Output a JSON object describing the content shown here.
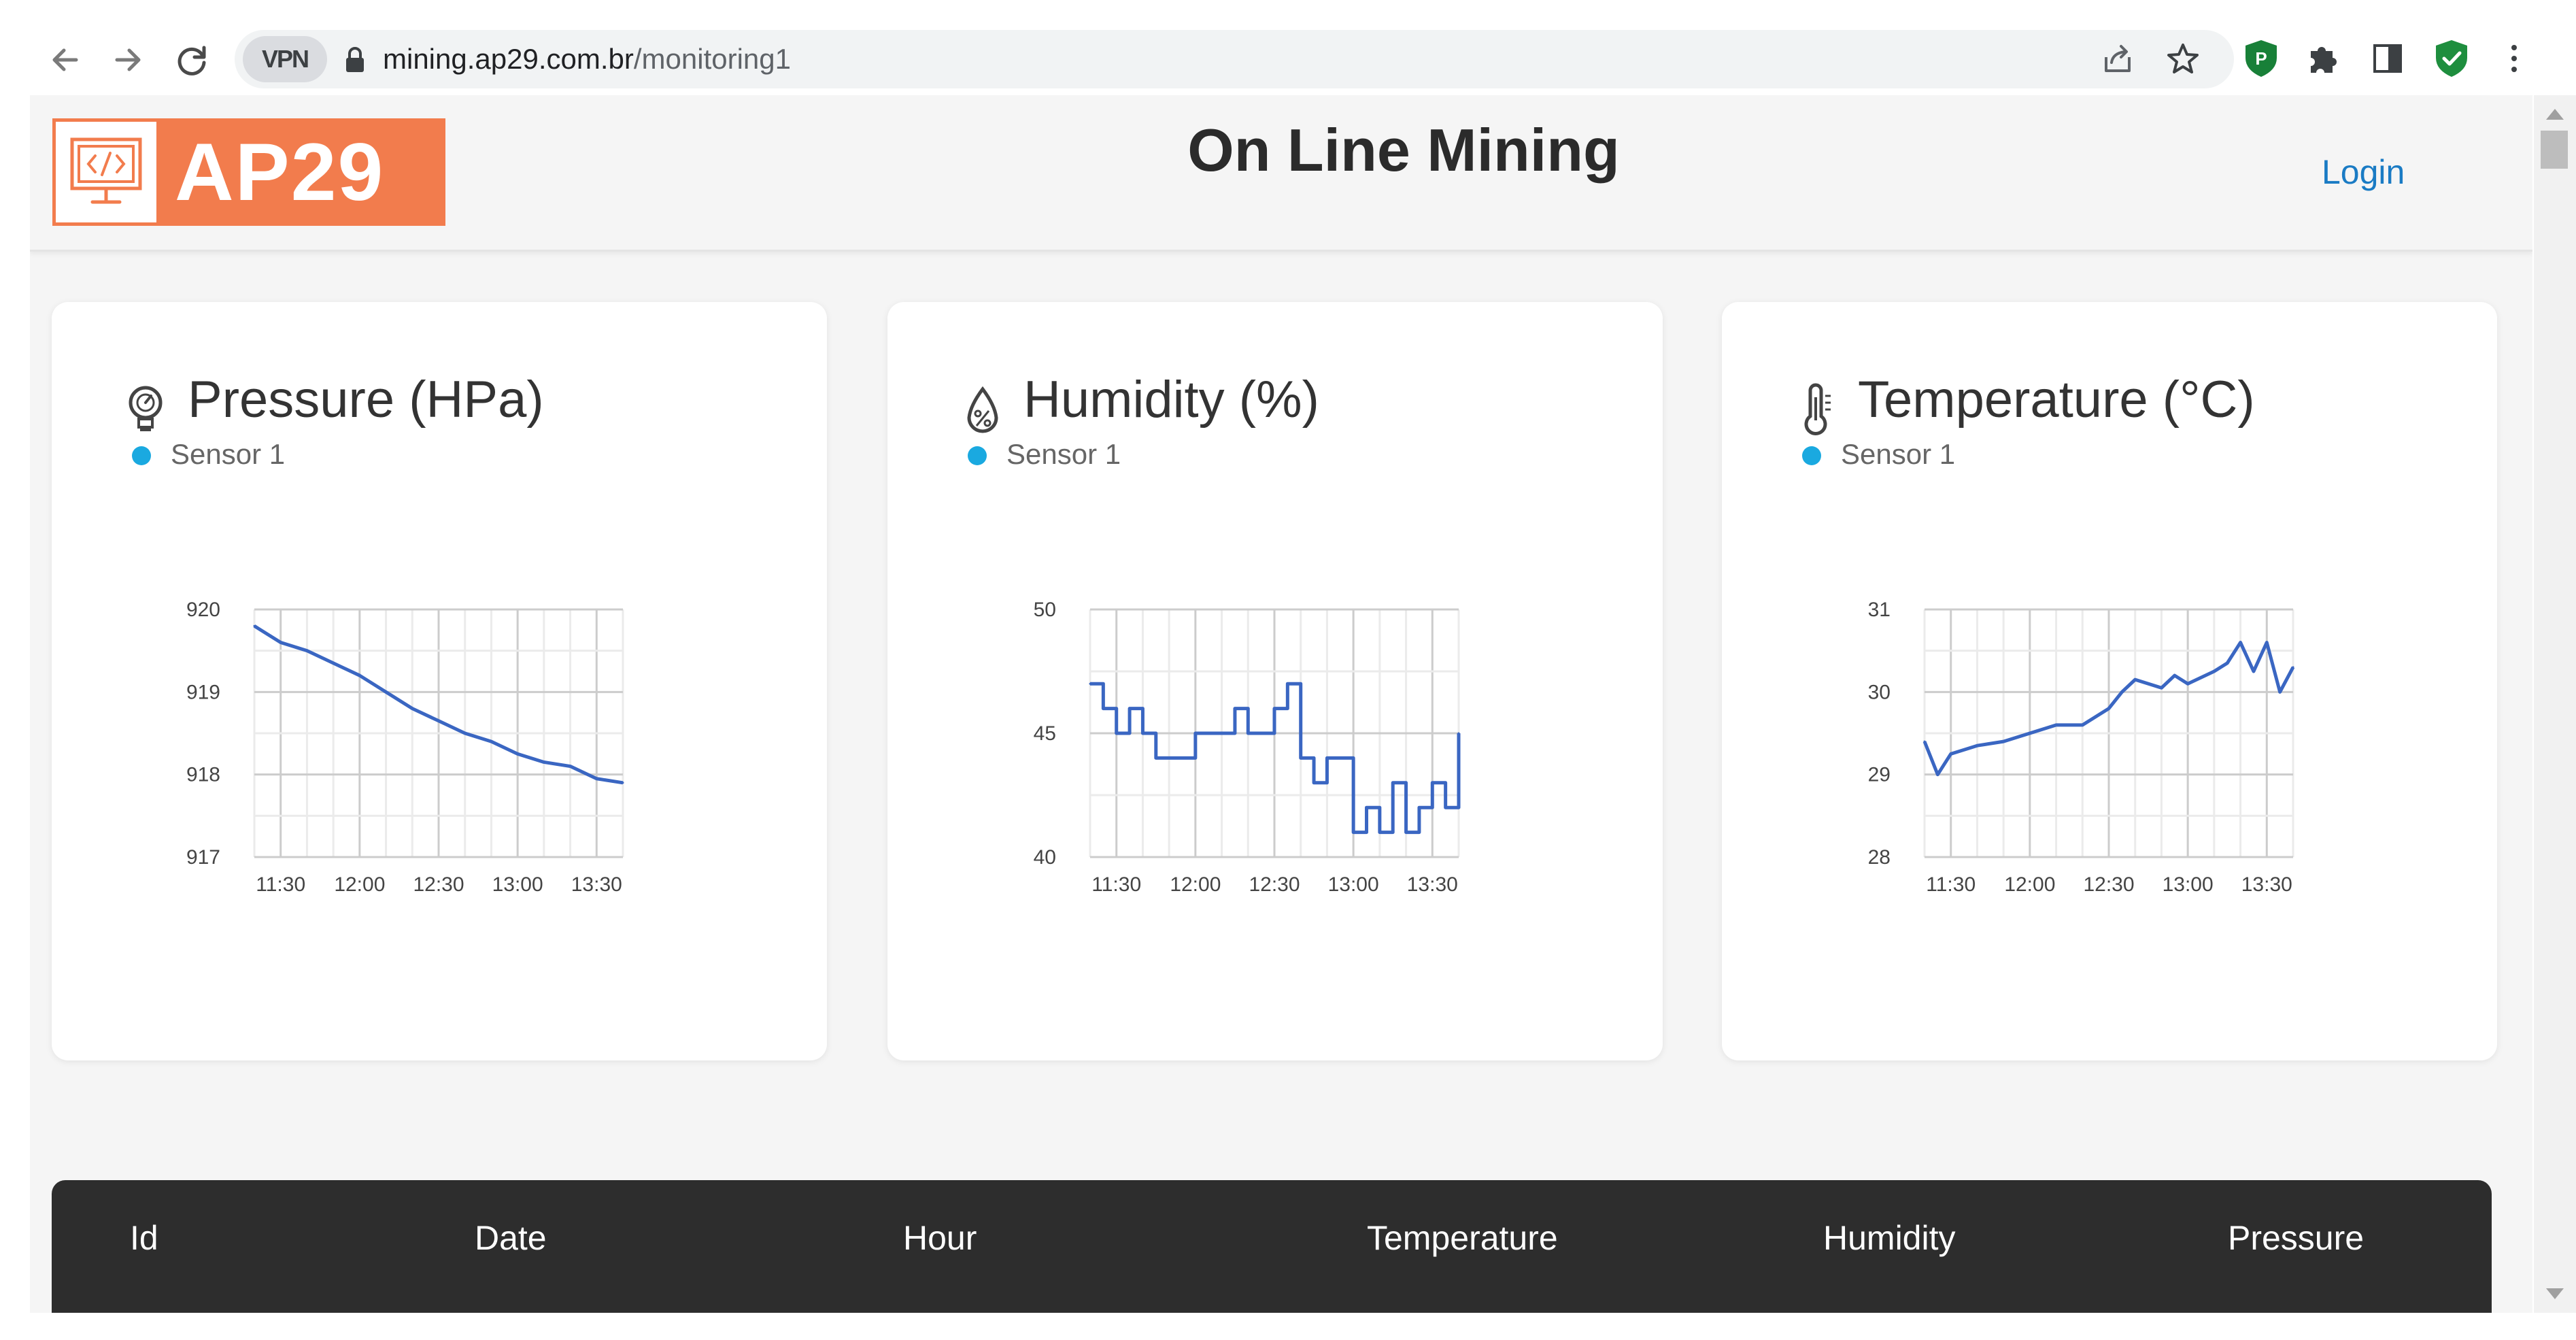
{
  "browser": {
    "vpn_label": "VPN",
    "url_domain": "mining.ap29.com.br",
    "url_path": "/monitoring1",
    "icons": [
      "back-icon",
      "forward-icon",
      "reload-icon",
      "lock-icon",
      "share-icon",
      "star-icon",
      "extension-p-icon",
      "puzzle-icon",
      "sidepanel-icon",
      "shield-check-icon",
      "more-vert-icon"
    ]
  },
  "header": {
    "logo_text": "AP29",
    "title": "On Line Mining",
    "login": "Login",
    "brand_color": "#f27c4d"
  },
  "cards": [
    {
      "title": "Pressure (HPa)",
      "icon": "pressure-gauge-icon",
      "legend": "Sensor 1"
    },
    {
      "title": "Humidity (%)",
      "icon": "humidity-drop-icon",
      "legend": "Sensor 1"
    },
    {
      "title": "Temperature (°C)",
      "icon": "thermometer-icon",
      "legend": "Sensor 1"
    }
  ],
  "chart_data": [
    {
      "type": "line",
      "title": "Pressure (HPa)",
      "series": [
        {
          "name": "Sensor 1",
          "color": "#3a66c2",
          "x": [
            "11:20",
            "11:30",
            "11:40",
            "11:50",
            "12:00",
            "12:10",
            "12:20",
            "12:30",
            "12:40",
            "12:50",
            "13:00",
            "13:10",
            "13:20",
            "13:30",
            "13:40"
          ],
          "values": [
            919.8,
            919.6,
            919.5,
            919.35,
            919.2,
            919.0,
            918.8,
            918.65,
            918.5,
            918.4,
            918.25,
            918.15,
            918.1,
            917.95,
            917.9
          ]
        }
      ],
      "xticks": [
        "11:30",
        "12:00",
        "12:30",
        "13:00",
        "13:30"
      ],
      "yticks": [
        917,
        918,
        919,
        920
      ],
      "ylim": [
        917,
        920
      ],
      "grid": true
    },
    {
      "type": "line",
      "title": "Humidity (%)",
      "series": [
        {
          "name": "Sensor 1",
          "color": "#3a66c2",
          "x": [
            "11:20",
            "11:25",
            "11:30",
            "11:35",
            "11:40",
            "11:45",
            "11:50",
            "12:00",
            "12:10",
            "12:15",
            "12:20",
            "12:30",
            "12:35",
            "12:40",
            "12:45",
            "12:50",
            "13:00",
            "13:05",
            "13:10",
            "13:15",
            "13:20",
            "13:25",
            "13:30",
            "13:35",
            "13:40"
          ],
          "values": [
            47,
            46,
            45,
            46,
            45,
            44,
            44,
            45,
            45,
            46,
            45,
            46,
            47,
            44,
            43,
            44,
            41,
            42,
            41,
            43,
            41,
            42,
            43,
            42,
            45
          ]
        }
      ],
      "xticks": [
        "11:30",
        "12:00",
        "12:30",
        "13:00",
        "13:30"
      ],
      "yticks": [
        40,
        45,
        50
      ],
      "ylim": [
        40,
        50
      ],
      "grid": true
    },
    {
      "type": "line",
      "title": "Temperature (°C)",
      "series": [
        {
          "name": "Sensor 1",
          "color": "#3a66c2",
          "x": [
            "11:20",
            "11:25",
            "11:30",
            "11:40",
            "11:50",
            "12:00",
            "12:10",
            "12:20",
            "12:30",
            "12:35",
            "12:40",
            "12:50",
            "12:55",
            "13:00",
            "13:10",
            "13:15",
            "13:20",
            "13:25",
            "13:30",
            "13:35",
            "13:40"
          ],
          "values": [
            29.4,
            29.0,
            29.25,
            29.35,
            29.4,
            29.5,
            29.6,
            29.6,
            29.8,
            30.0,
            30.15,
            30.05,
            30.2,
            30.1,
            30.25,
            30.35,
            30.6,
            30.25,
            30.6,
            30.0,
            30.3
          ]
        }
      ],
      "xticks": [
        "11:30",
        "12:00",
        "12:30",
        "13:00",
        "13:30"
      ],
      "yticks": [
        28,
        29,
        30,
        31
      ],
      "ylim": [
        28,
        31
      ],
      "grid": true
    }
  ],
  "table": {
    "headers": [
      "Id",
      "Date",
      "Hour",
      "Temperature",
      "Humidity",
      "Pressure"
    ]
  }
}
